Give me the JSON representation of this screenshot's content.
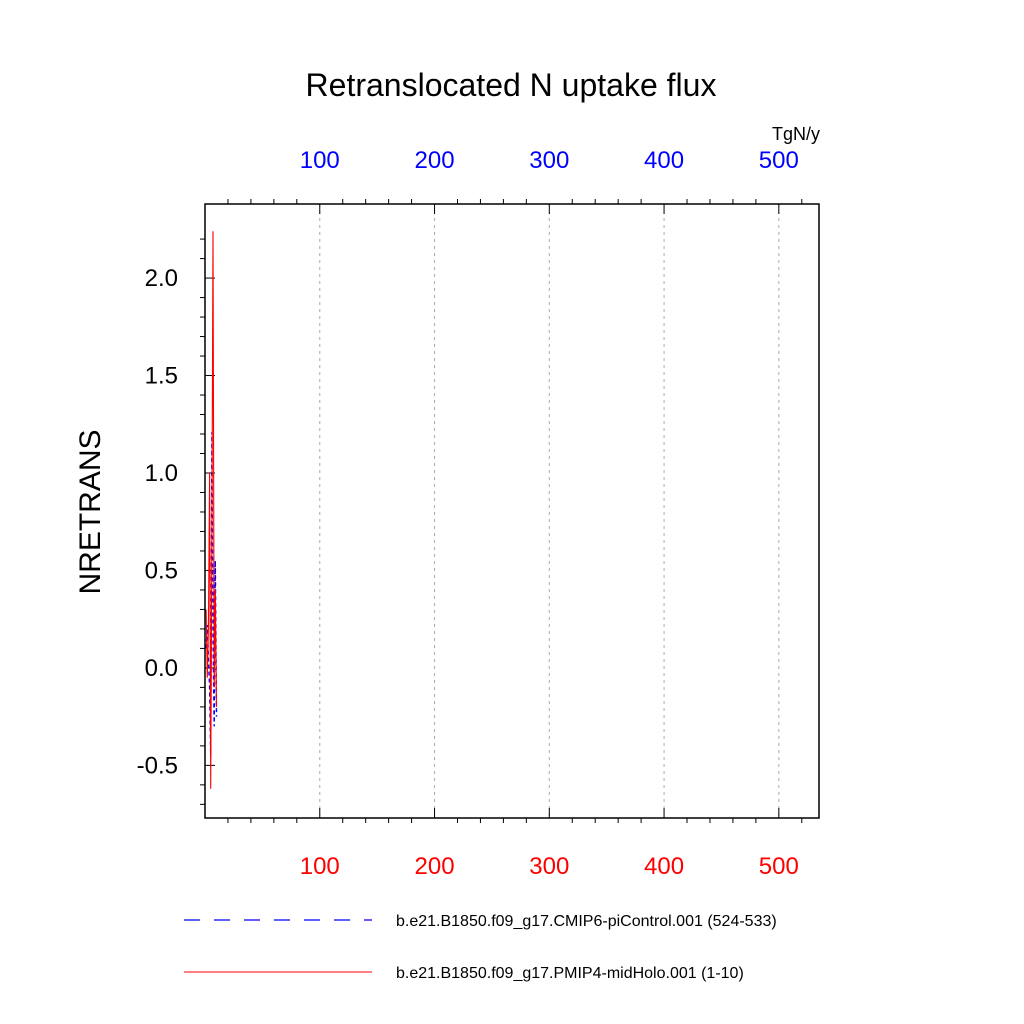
{
  "chart_data": {
    "type": "line",
    "title": "Retranslocated N uptake flux",
    "ylabel": "NRETRANS",
    "units_label": "TgN/y",
    "xlim": [
      0,
      535
    ],
    "ylim": [
      -0.77,
      2.38
    ],
    "y_ticks": [
      "-0.5",
      "0.0",
      "0.5",
      "1.0",
      "1.5",
      "2.0"
    ],
    "y_tick_values": [
      -0.5,
      0.0,
      0.5,
      1.0,
      1.5,
      2.0
    ],
    "top_x_ticks": [
      "100",
      "200",
      "300",
      "400",
      "500"
    ],
    "bottom_x_ticks": [
      "100",
      "200",
      "300",
      "400",
      "500"
    ],
    "x_tick_values": [
      100,
      200,
      300,
      400,
      500
    ],
    "top_axis_color": "#0000ff",
    "bottom_axis_color": "#ff0000",
    "grid": "vertical dashed",
    "legend_position": "bottom",
    "series": [
      {
        "name": "b.e21.B1850.f09_g17.CMIP6-piControl.001 (524-533)",
        "color": "#0000ff",
        "dash": "dashed",
        "x": [
          1,
          2,
          3,
          4,
          5,
          6,
          7,
          8,
          9,
          10
        ],
        "y": [
          0.1,
          0.22,
          0.05,
          -0.1,
          -0.45,
          1.21,
          0.15,
          -0.3,
          0.55,
          -0.25
        ]
      },
      {
        "name": "b.e21.B1850.f09_g17.PMIP4-midHolo.001 (1-10)",
        "color": "#ff0000",
        "dash": "solid",
        "x": [
          1,
          2,
          3,
          4,
          5,
          6,
          7,
          8,
          9,
          10
        ],
        "y": [
          0.3,
          -0.05,
          0.2,
          1.0,
          -0.62,
          0.7,
          2.24,
          -0.1,
          0.4,
          -0.2
        ]
      }
    ]
  }
}
